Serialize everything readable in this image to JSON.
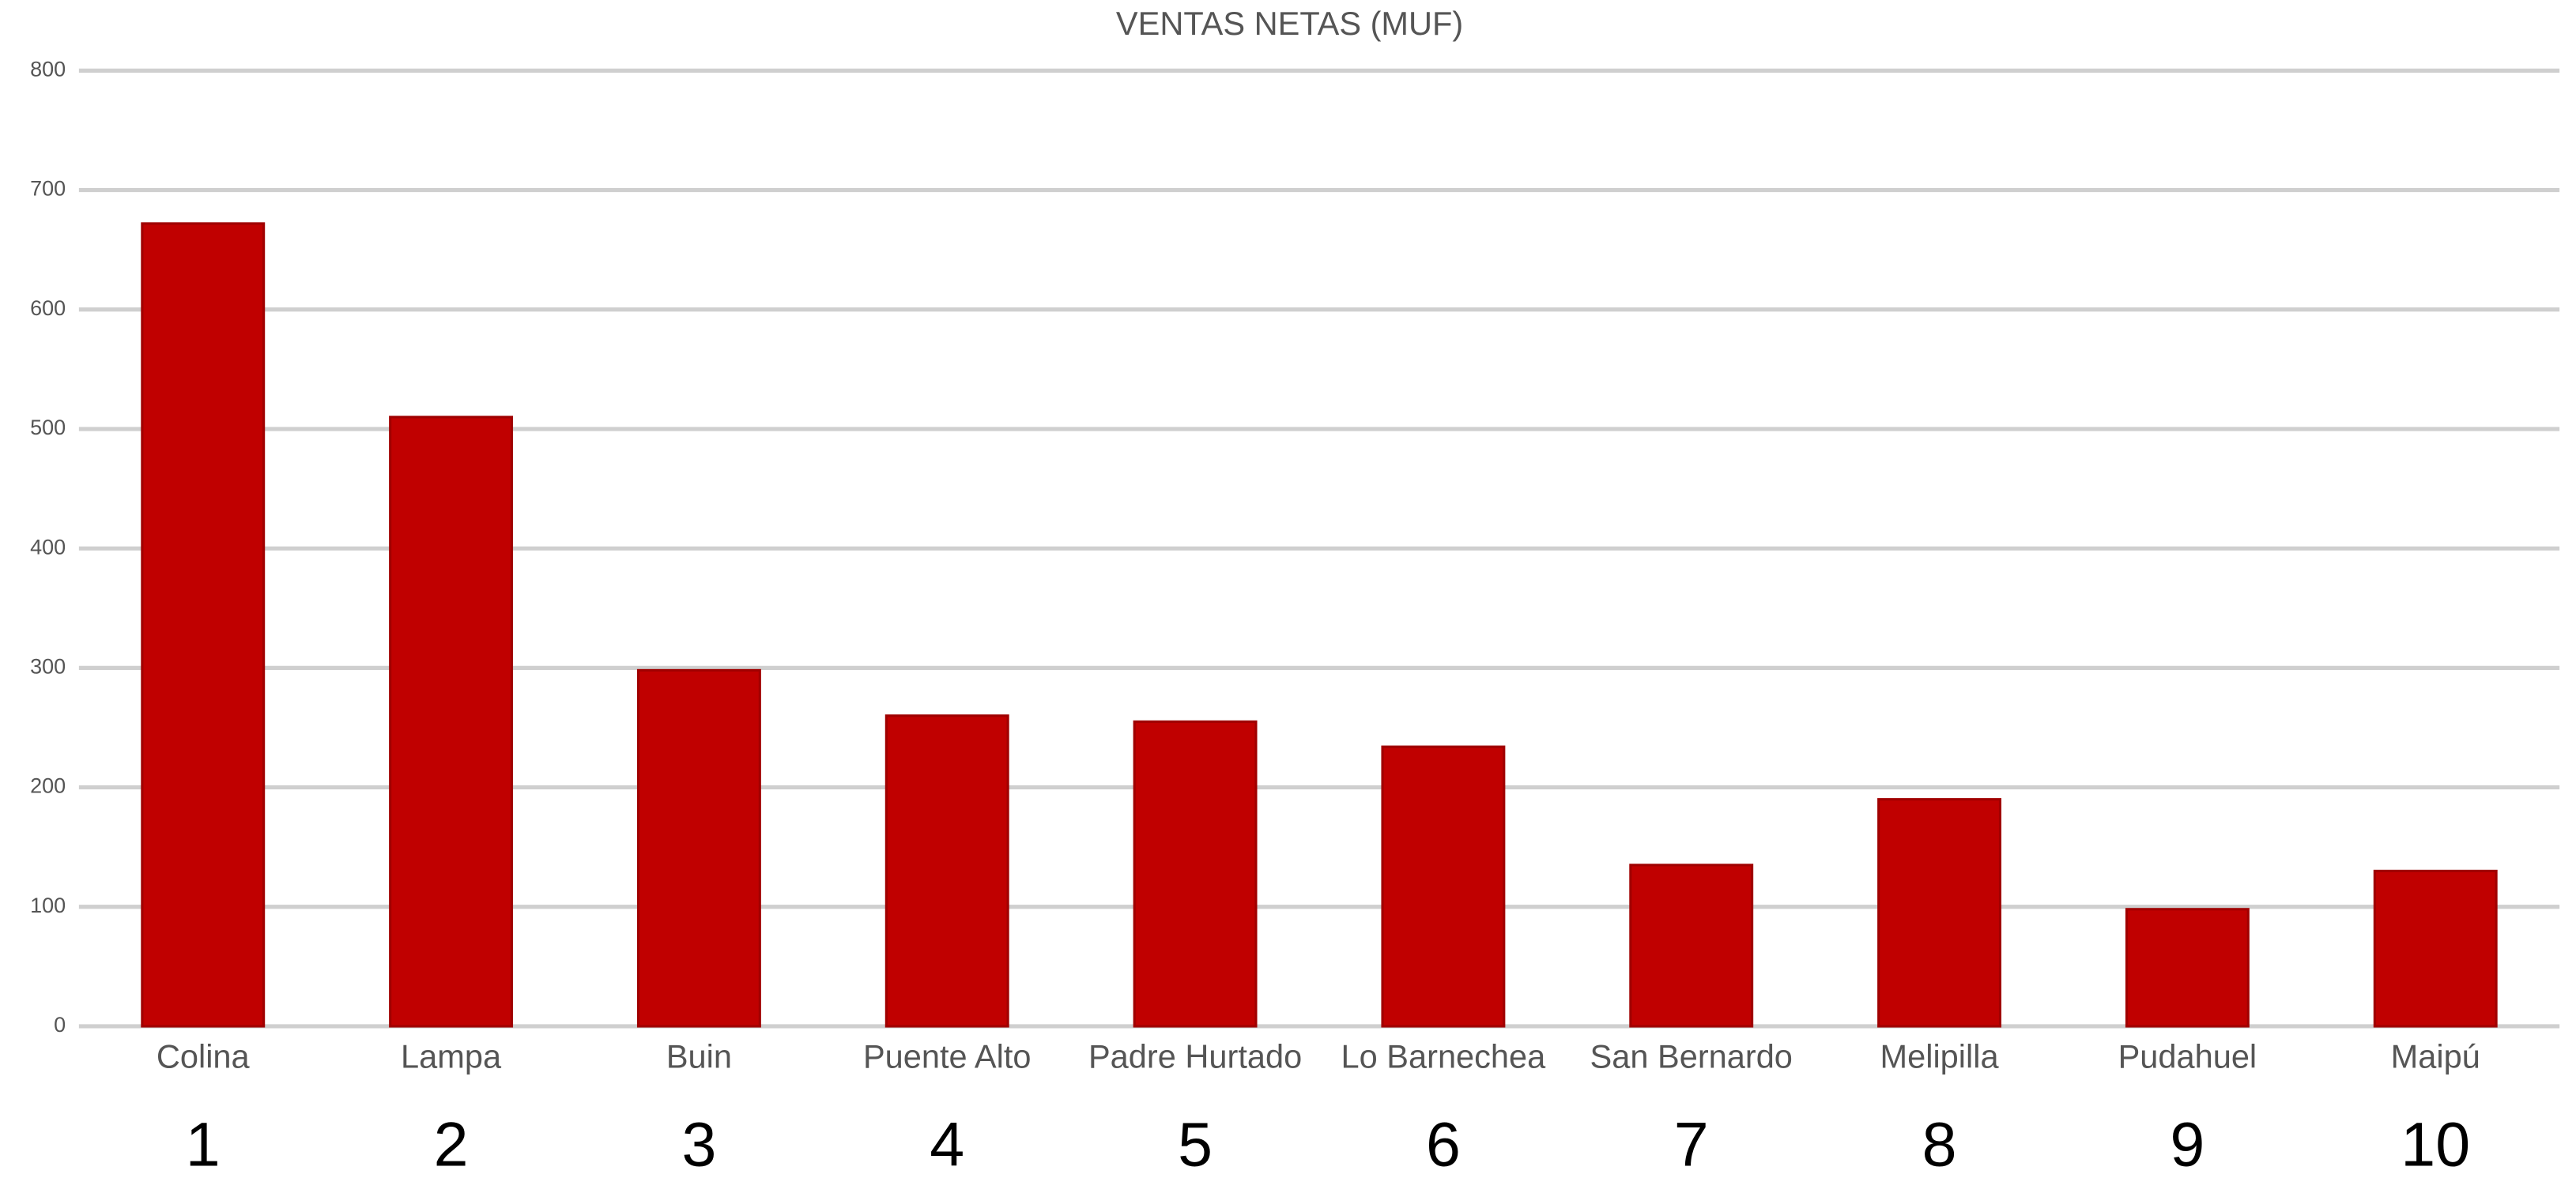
{
  "chart_data": {
    "type": "bar",
    "title": "VENTAS NETAS  (MUF)",
    "categories": [
      "Colina",
      "Lampa",
      "Buin",
      "Puente Alto",
      "Padre Hurtado",
      "Lo Barnechea",
      "San Bernardo",
      "Melipilla",
      "Pudahuel",
      "Maipú"
    ],
    "values": [
      672,
      510,
      298,
      260,
      255,
      234,
      135,
      190,
      98,
      130
    ],
    "ranks": [
      1,
      2,
      3,
      4,
      5,
      6,
      7,
      8,
      9,
      10
    ],
    "color": "#c00000",
    "ylim": [
      0,
      800
    ],
    "yticks": [
      0,
      100,
      200,
      300,
      400,
      500,
      600,
      700,
      800
    ],
    "grid": true
  }
}
